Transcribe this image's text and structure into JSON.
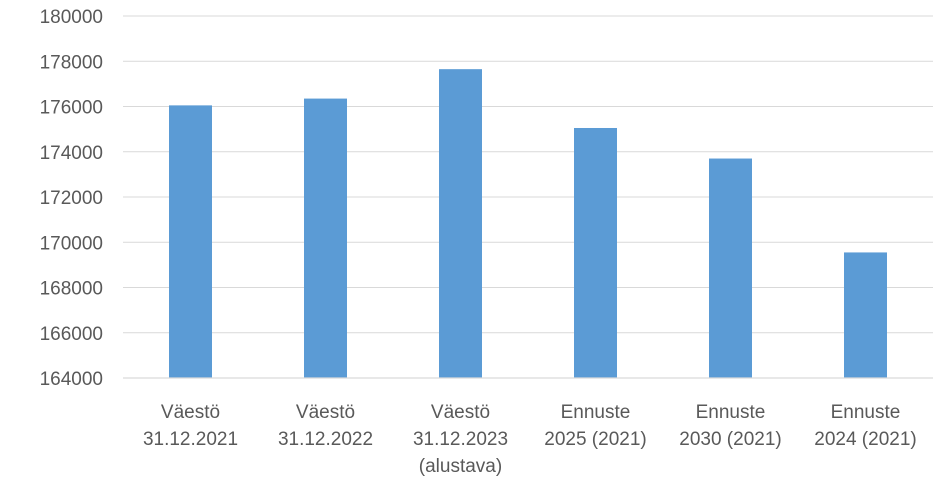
{
  "chart_data": {
    "type": "bar",
    "categories": [
      [
        "Väestö",
        "31.12.2021"
      ],
      [
        "Väestö",
        "31.12.2022"
      ],
      [
        "Väestö",
        "31.12.2023",
        "(alustava)"
      ],
      [
        "Ennuste",
        "2025 (2021)"
      ],
      [
        "Ennuste",
        "2030 (2021)"
      ],
      [
        "Ennuste",
        "2024 (2021)"
      ]
    ],
    "values": [
      176050,
      176350,
      177650,
      175050,
      173700,
      169550
    ],
    "ylim": [
      164000,
      180000
    ],
    "yticks": [
      "164000",
      "166000",
      "168000",
      "170000",
      "172000",
      "174000",
      "176000",
      "178000",
      "180000"
    ],
    "bar_color": "#5b9bd5",
    "grid": true,
    "legend": "none"
  }
}
